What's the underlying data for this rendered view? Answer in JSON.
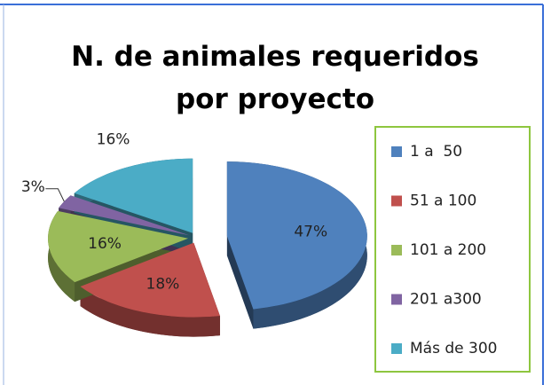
{
  "chart_data": {
    "type": "pie",
    "title": "N. de animales requeridos por proyecto",
    "categories": [
      "1 a  50",
      "51 a 100",
      "101 a 200",
      "201 a300",
      "Más de 300"
    ],
    "values": [
      47,
      18,
      16,
      3,
      16
    ],
    "value_labels": [
      "47%",
      "18%",
      "16%",
      "3%",
      "16%"
    ],
    "colors": [
      "#4f81bd",
      "#c0504d",
      "#9bbb59",
      "#8064a2",
      "#4bacc6"
    ],
    "legend": "right"
  }
}
